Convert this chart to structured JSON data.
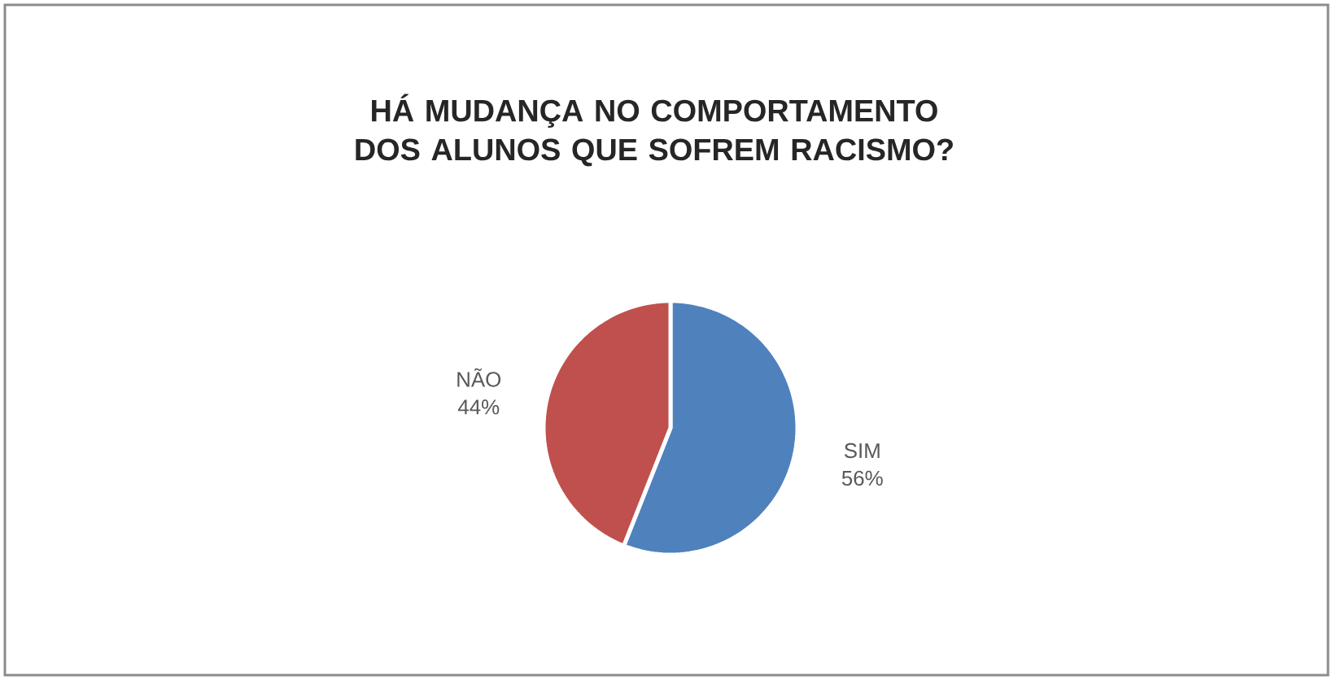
{
  "chart_data": {
    "type": "pie",
    "title": "HÁ MUDANÇA NO COMPORTAMENTO DOS ALUNOS QUE SOFREM RACISMO?",
    "categories": [
      "SIM",
      "NÃO"
    ],
    "values": [
      56,
      44
    ],
    "colors": [
      "#4f81bd",
      "#c0504d"
    ],
    "value_labels": [
      "56%",
      "44%"
    ]
  }
}
